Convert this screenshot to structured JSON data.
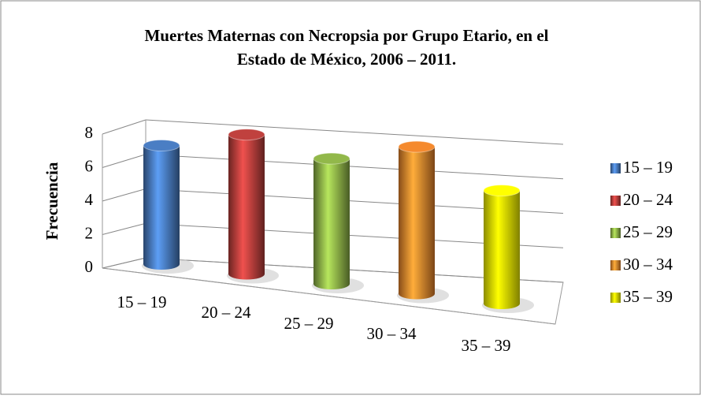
{
  "chart_data": {
    "type": "bar3d",
    "title": [
      "Muertes Maternas con Necropsia por Grupo Etario, en el",
      "Estado de México, 2006 – 2011."
    ],
    "ylabel": "Frecuencia",
    "categories": [
      "15 – 19",
      "20 – 24",
      "25 – 29",
      "30 – 34",
      "35 – 39"
    ],
    "values": [
      7,
      8,
      7,
      8,
      6
    ],
    "colors": [
      "#4a7ec4",
      "#c0413e",
      "#92b84a",
      "#f58a2e",
      "#ffff00"
    ],
    "ylim": [
      0,
      8
    ],
    "yticks": [
      0,
      2,
      4,
      6,
      8
    ],
    "grid": true,
    "legend": "right"
  }
}
